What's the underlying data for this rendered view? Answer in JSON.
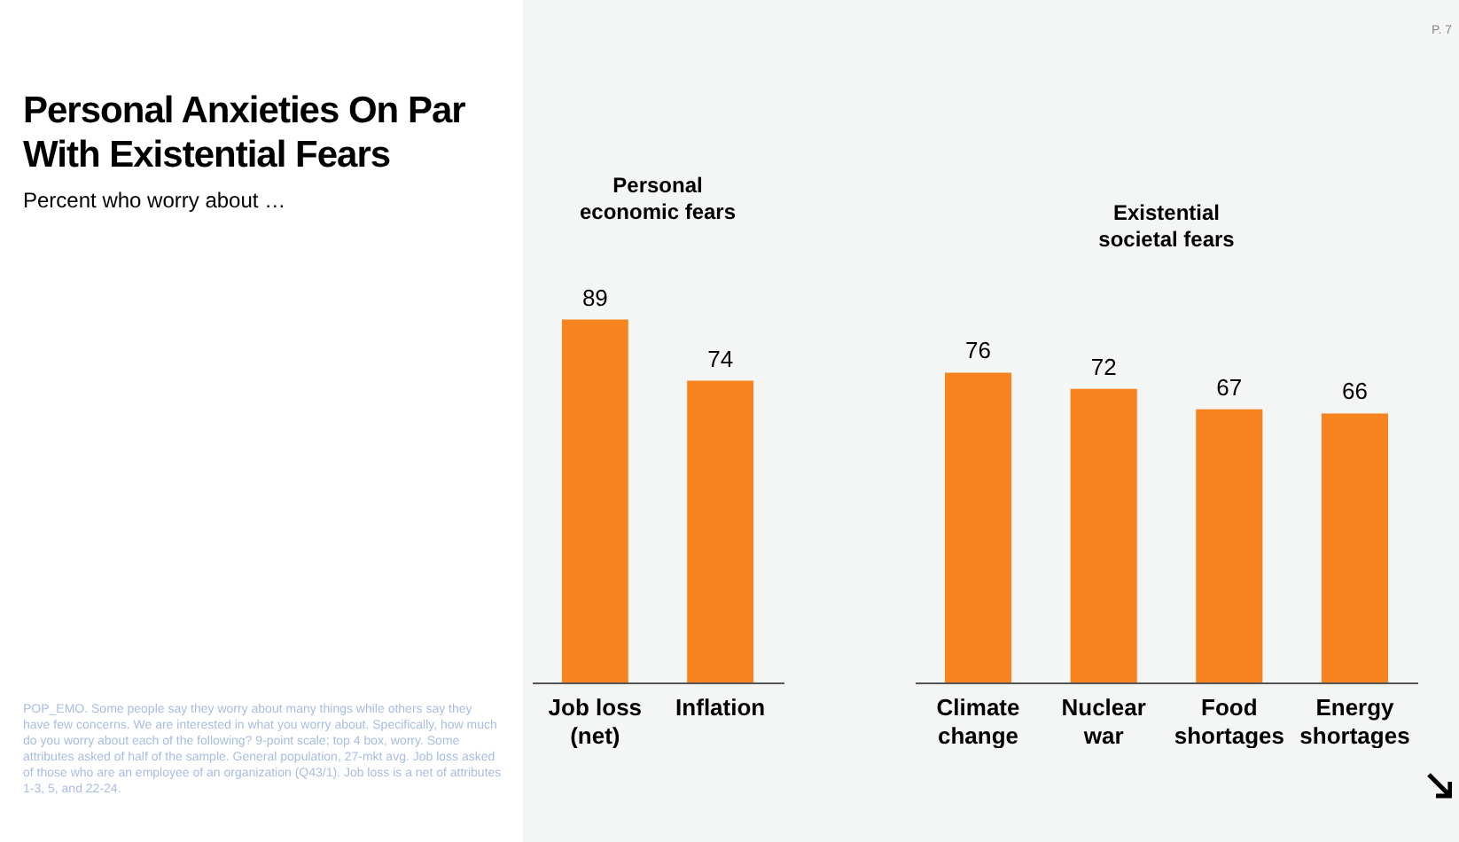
{
  "chart_data": {
    "type": "bar",
    "title": "Personal Anxieties On Par With Existential Fears",
    "subtitle": "Percent who worry about …",
    "categories": [
      "Job loss (net)",
      "Inflation",
      null,
      "Climate change",
      "Nuclear war",
      "Food shortages",
      "Energy shortages"
    ],
    "values": [
      89,
      74,
      null,
      76,
      72,
      67,
      66
    ],
    "color": "#f7841e",
    "data_labels": true,
    "annotations": [
      "Personal economic fears",
      "Existential societal fears",
      "P. 7",
      "POP_EMO. Some people say they worry about many things while others say they have few concerns. We are interested in what you worry about. Specifically, how much do you worry about each of the following? 9-point scale; top 4 box, worry. Some attributes asked of half of the sample. General population, 27-mkt avg. Job loss asked of those who are an employee of an organization (Q43/1). Job loss is a net of attributes 1-3, 5, and 22-24."
    ]
  }
}
